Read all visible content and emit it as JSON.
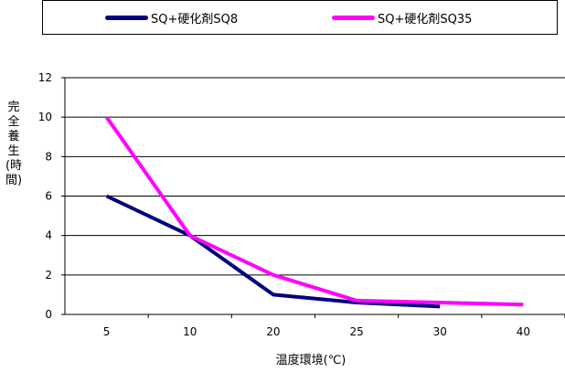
{
  "chart_data": {
    "type": "line",
    "categories": [
      "5",
      "10",
      "20",
      "25",
      "30",
      "40"
    ],
    "series": [
      {
        "name": "SQ+硬化剤SQ8",
        "color": "#000080",
        "values": [
          6,
          4,
          1,
          0.6,
          0.4,
          null
        ]
      },
      {
        "name": "SQ+硬化剤SQ35",
        "color": "#ff00ff",
        "values": [
          10,
          4,
          2,
          0.7,
          0.6,
          0.5
        ]
      }
    ],
    "xlabel": "温度環境(℃)",
    "ylabel": "完全養生(時間)",
    "ylim": [
      0,
      12
    ],
    "yticks": [
      "0",
      "2",
      "4",
      "6",
      "8",
      "10",
      "12"
    ],
    "grid": true,
    "legend_position": "top"
  }
}
